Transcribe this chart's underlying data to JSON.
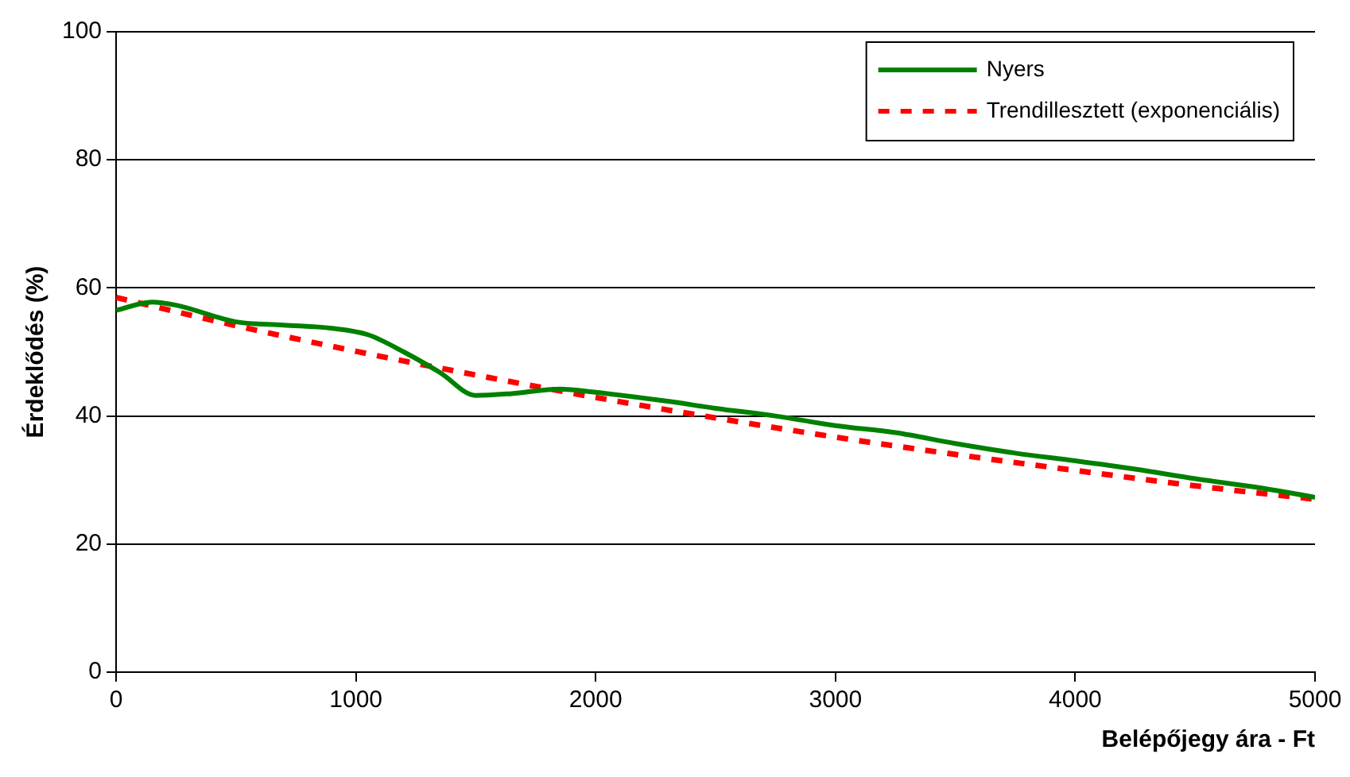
{
  "chart_data": {
    "type": "line",
    "xlabel": "Belépőjegy ára - Ft",
    "ylabel": "Érdeklődés (%)",
    "xlim": [
      0,
      5000
    ],
    "xticks": [
      0,
      1000,
      2000,
      3000,
      4000,
      5000
    ],
    "ylim": [
      0,
      100
    ],
    "yticks": [
      0,
      20,
      40,
      60,
      80,
      100
    ],
    "grid": "y",
    "legend": "top right",
    "marker": "none",
    "series": [
      {
        "name": "Nyers",
        "color": "#008000",
        "line_style": "solid",
        "x": [
          0,
          150,
          250,
          500,
          700,
          900,
          1050,
          1200,
          1350,
          1500,
          1650,
          1850,
          2000,
          2300,
          2500,
          2750,
          3000,
          3250,
          3500,
          3750,
          4000,
          4250,
          4500,
          4750,
          5000
        ],
        "values": [
          56.5,
          57.8,
          57.3,
          54.7,
          54.2,
          53.7,
          52.7,
          50,
          46.8,
          43.2,
          43.5,
          44.2,
          43.7,
          42.3,
          41.2,
          40,
          38.5,
          37.4,
          35.7,
          34.2,
          33,
          31.7,
          30.2,
          28.9,
          27.3
        ]
      },
      {
        "name": "Trendillesztett (exponenciális)",
        "color": "#ff0000",
        "line_style": "dashed",
        "x": [
          0,
          500,
          1000,
          1500,
          2000,
          2500,
          3000,
          3500,
          4000,
          4500,
          5000
        ],
        "values": [
          58.5,
          54.1,
          50.1,
          46.4,
          42.9,
          39.7,
          36.7,
          34,
          31.5,
          29.1,
          27
        ]
      }
    ]
  }
}
